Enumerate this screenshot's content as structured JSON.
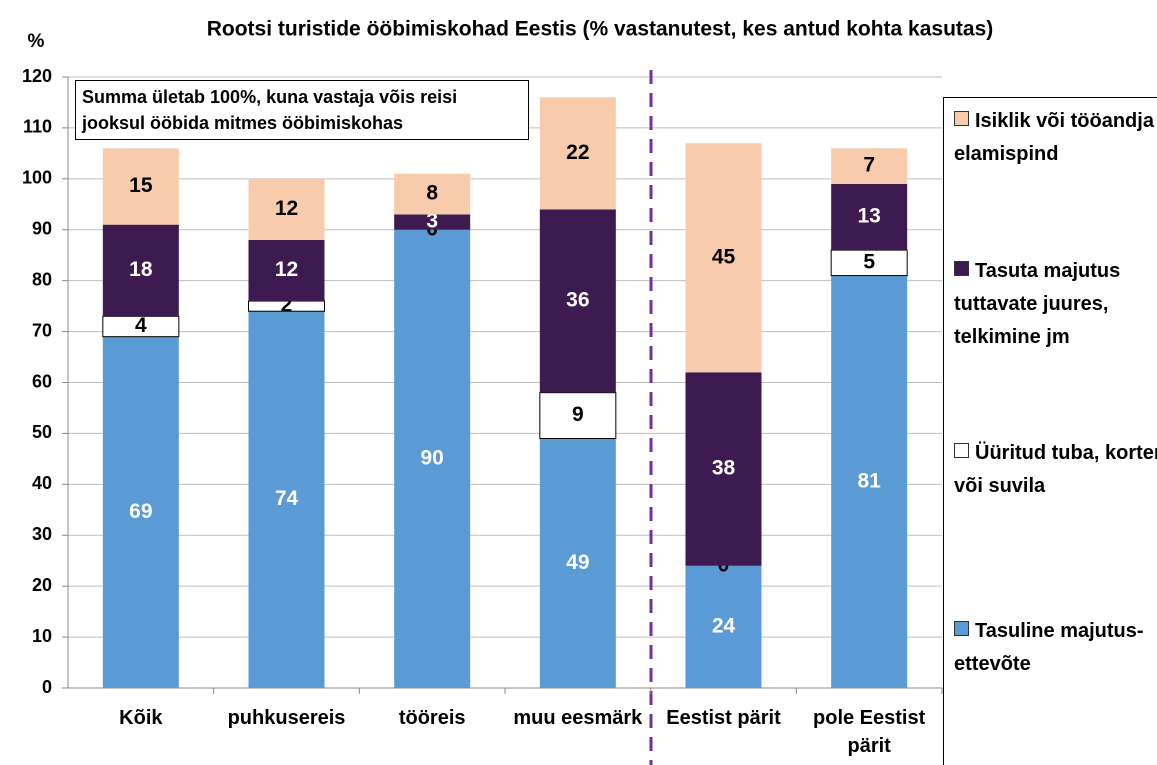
{
  "chart_data": {
    "type": "bar",
    "stacked": true,
    "title": "Rootsi turistide ööbimiskohad Eestis (% vastanutest, kes antud kohta kasutas)",
    "ylabel": "%",
    "annotation": "Summa ületab 100%, kuna vastaja võis reisi jooksul ööbida mitmes ööbimiskohas",
    "categories": [
      "Kõik",
      "puhkusereis",
      "tööreis",
      "muu eesmärk",
      "Eestist pärit",
      "pole Eestist pärit"
    ],
    "series": [
      {
        "name": "Tasuline majutus-ettevõte",
        "color": "#5b9bd5",
        "values": [
          69,
          74,
          90,
          49,
          24,
          81
        ]
      },
      {
        "name": "Üüritud tuba, korter või suvila",
        "color": "#ffffff",
        "values": [
          4,
          2,
          0,
          9,
          0,
          5
        ]
      },
      {
        "name": "Tasuta majutus tuttavate juures, telkimine jm",
        "color": "#3d1a4f",
        "values": [
          18,
          12,
          3,
          36,
          38,
          13
        ]
      },
      {
        "name": "Isiklik või tööandja elamispind",
        "color": "#f8cbad",
        "values": [
          15,
          12,
          8,
          22,
          45,
          7
        ]
      }
    ],
    "ylim": [
      0,
      120
    ],
    "yticks": [
      0,
      10,
      20,
      30,
      40,
      50,
      60,
      70,
      80,
      90,
      100,
      110,
      120
    ],
    "grid": true,
    "legend": "right"
  }
}
